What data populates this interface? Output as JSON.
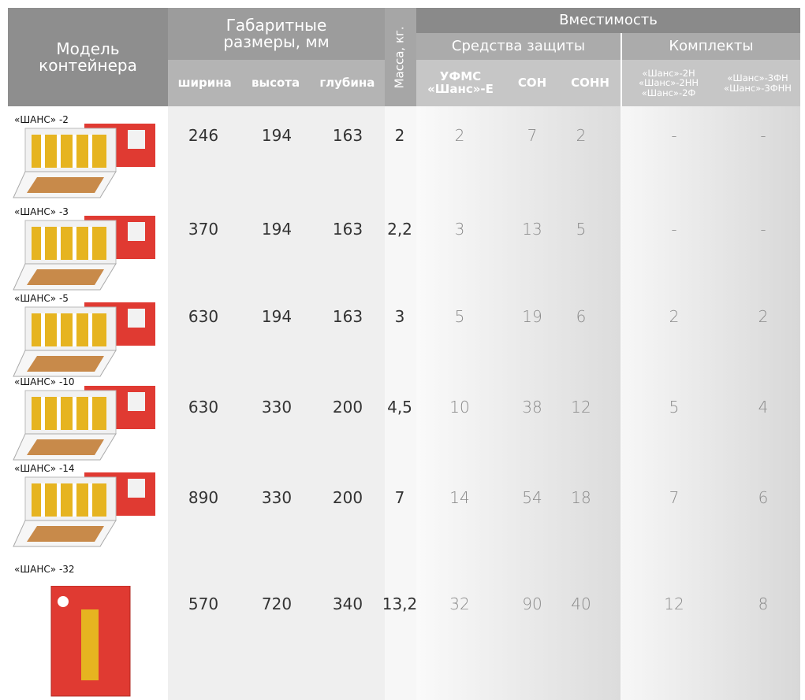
{
  "header": {
    "model": [
      "Модель",
      "контейнера"
    ],
    "dimensions": [
      "Габаритные",
      "размеры, мм"
    ],
    "width": "ширина",
    "height": "высота",
    "depth": "глубина",
    "mass": "Масса, кг.",
    "capacity": "Вместимость",
    "protection": "Средства защиты",
    "kits": "Комплекты",
    "ufms": [
      "УФМС",
      "«Шанс»-Е"
    ],
    "son": "СОН",
    "sonn": "СОНН",
    "kits1": [
      "«Шанс»-2Н",
      "«Шанс»-2НН",
      "«Шанс»-2Ф"
    ],
    "kits2": [
      "«Шанс»-3ФН",
      "«Шанс»-3ФНН"
    ]
  },
  "rows": [
    [
      "«ШАНС» -2",
      "246",
      "194",
      "163",
      "2",
      "2",
      "7",
      "2",
      "-",
      "-"
    ],
    [
      "«ШАНС» -3",
      "370",
      "194",
      "163",
      "2,2",
      "3",
      "13",
      "5",
      "-",
      "-"
    ],
    [
      "«ШАНС» -5",
      "630",
      "194",
      "163",
      "3",
      "5",
      "19",
      "6",
      "2",
      "2"
    ],
    [
      "«ШАНС» -10",
      "630",
      "330",
      "200",
      "4,5",
      "10",
      "38",
      "12",
      "5",
      "4"
    ],
    [
      "«ШАНС» -14",
      "890",
      "330",
      "200",
      "7",
      "14",
      "54",
      "18",
      "7",
      "6"
    ],
    [
      "«ШАНС» -32",
      "570",
      "720",
      "340",
      "13,2",
      "32",
      "90",
      "40",
      "12",
      "8"
    ]
  ]
}
